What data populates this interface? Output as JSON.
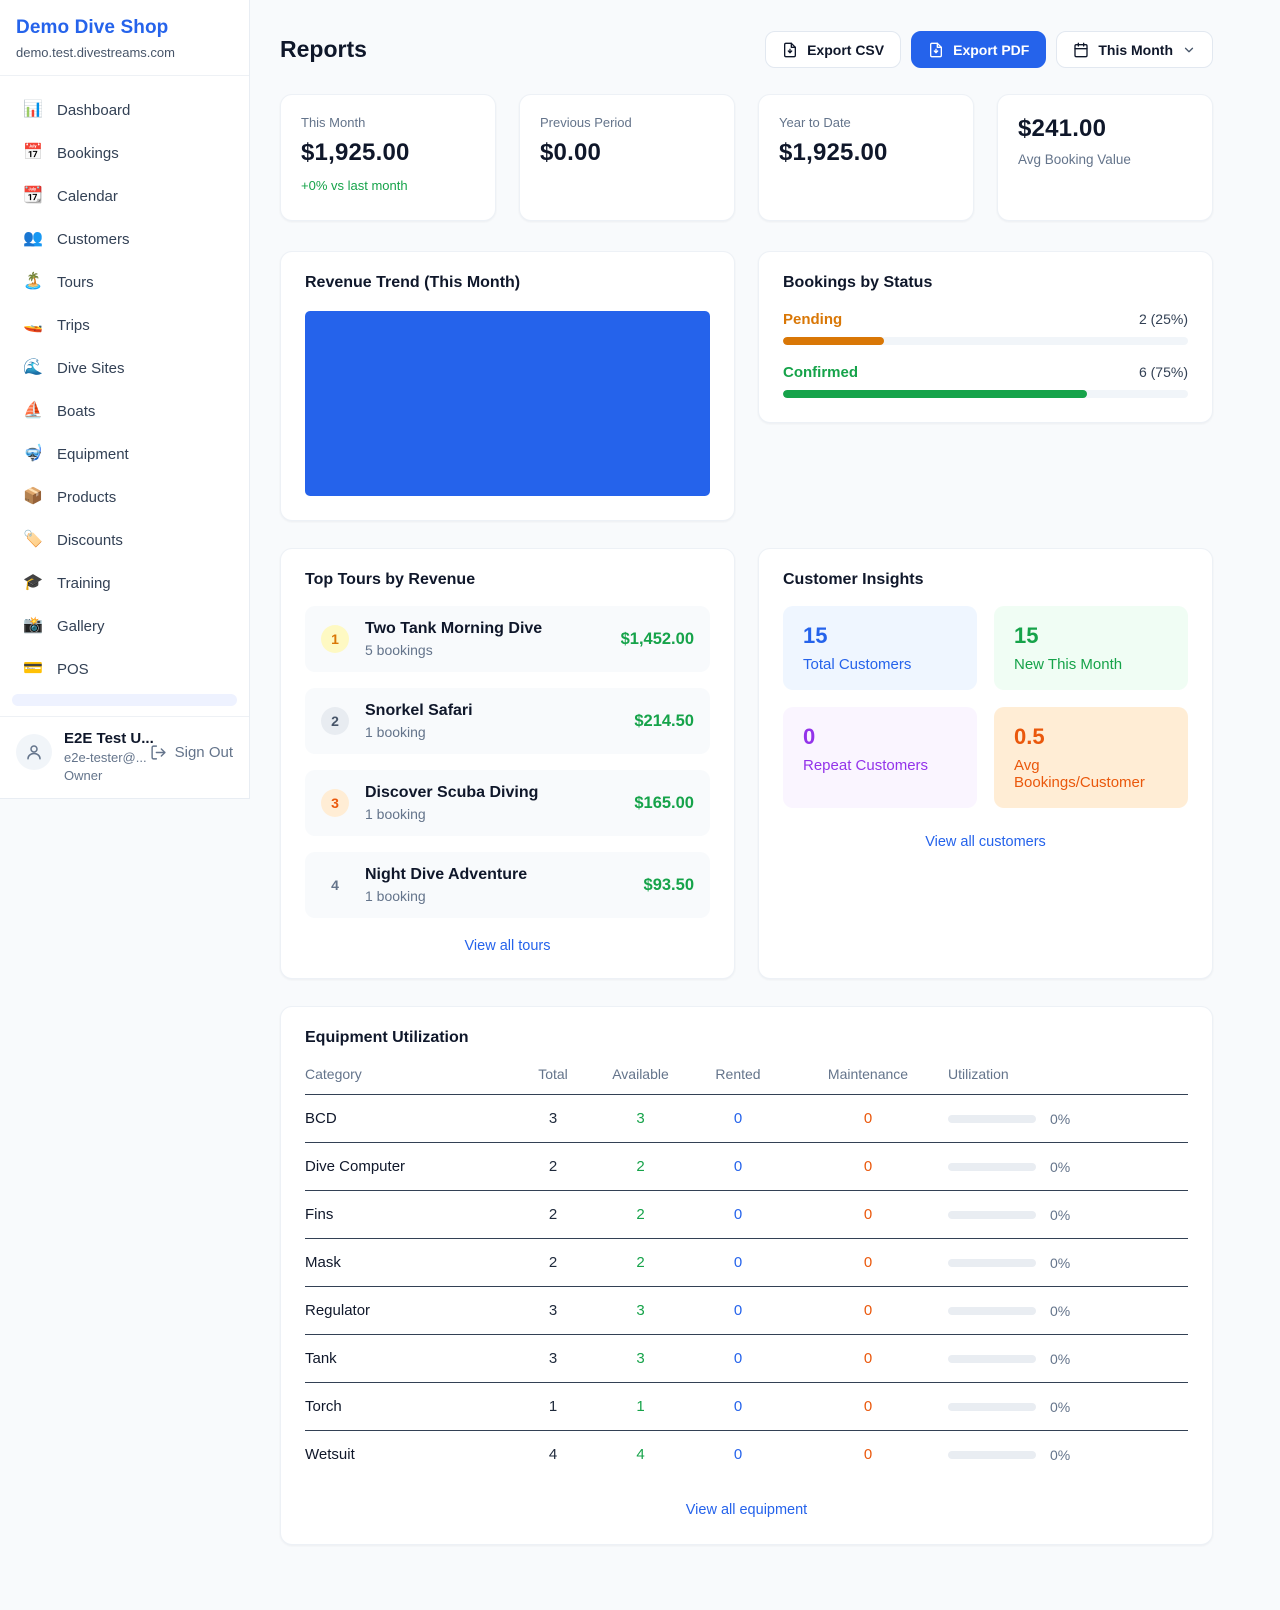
{
  "colors": {
    "brand": "#2563eb",
    "link": "#2563eb",
    "success": "#16a34a",
    "pending": "#d97706",
    "rented": "#2563eb",
    "maintenance": "#ea580c",
    "page_bg": "#f8fafc"
  },
  "sidebar": {
    "brand": {
      "name": "Demo Dive Shop",
      "domain": "demo.test.divestreams.com"
    },
    "items": [
      {
        "icon": "📊",
        "label": "Dashboard"
      },
      {
        "icon": "📅",
        "label": "Bookings"
      },
      {
        "icon": "📆",
        "label": "Calendar"
      },
      {
        "icon": "👥",
        "label": "Customers"
      },
      {
        "icon": "🏝️",
        "label": "Tours"
      },
      {
        "icon": "🚤",
        "label": "Trips"
      },
      {
        "icon": "🌊",
        "label": "Dive Sites"
      },
      {
        "icon": "⛵",
        "label": "Boats"
      },
      {
        "icon": "🤿",
        "label": "Equipment"
      },
      {
        "icon": "📦",
        "label": "Products"
      },
      {
        "icon": "🏷️",
        "label": "Discounts"
      },
      {
        "icon": "🎓",
        "label": "Training"
      },
      {
        "icon": "📸",
        "label": "Gallery"
      },
      {
        "icon": "💳",
        "label": "POS"
      }
    ],
    "user": {
      "name": "E2E Test U...",
      "email": "e2e-tester@...",
      "role": "Owner",
      "sign_out_label": "Sign Out"
    }
  },
  "header": {
    "title": "Reports",
    "export_csv_label": "Export CSV",
    "export_pdf_label": "Export PDF",
    "period_label": "This Month"
  },
  "stats": [
    {
      "label": "This Month",
      "value": "$1,925.00",
      "delta": "+0% vs last month"
    },
    {
      "label": "Previous Period",
      "value": "$0.00"
    },
    {
      "label": "Year to Date",
      "value": "$1,925.00"
    },
    {
      "label": "Avg Booking Value",
      "value": "$241.00"
    }
  ],
  "revenue_trend": {
    "title": "Revenue Trend (This Month)",
    "bar_color": "#2563eb"
  },
  "bookings_by_status": {
    "title": "Bookings by Status",
    "rows": [
      {
        "label": "Pending",
        "value": "2 (25%)",
        "percent": 25,
        "color": "#d97706"
      },
      {
        "label": "Confirmed",
        "value": "6 (75%)",
        "percent": 75,
        "color": "#16a34a"
      }
    ]
  },
  "top_tours": {
    "title": "Top Tours by Revenue",
    "rows": [
      {
        "rank": "1",
        "name": "Two Tank Morning Dive",
        "bookings": "5 bookings",
        "revenue": "$1,452.00",
        "badge_bg": "#fef9c3",
        "badge_color": "#d97706"
      },
      {
        "rank": "2",
        "name": "Snorkel Safari",
        "bookings": "1 booking",
        "revenue": "$214.50",
        "badge_bg": "#e8ecf1",
        "badge_color": "#475569"
      },
      {
        "rank": "3",
        "name": "Discover Scuba Diving",
        "bookings": "1 booking",
        "revenue": "$165.00",
        "badge_bg": "#ffedd5",
        "badge_color": "#ea580c"
      },
      {
        "rank": "4",
        "name": "Night Dive Adventure",
        "bookings": "1 booking",
        "revenue": "$93.50",
        "badge_bg": "transparent",
        "badge_color": "#64748b"
      }
    ],
    "view_all_label": "View all tours"
  },
  "customer_insights": {
    "title": "Customer Insights",
    "tiles": [
      {
        "value": "15",
        "label": "Total Customers",
        "color": "#2563eb",
        "bg": "#eff6ff"
      },
      {
        "value": "15",
        "label": "New This Month",
        "color": "#16a34a",
        "bg": "#f0fdf4"
      },
      {
        "value": "0",
        "label": "Repeat Customers",
        "color": "#9333ea",
        "bg": "#faf5ff"
      },
      {
        "value": "0.5",
        "label": "Avg Bookings/Customer",
        "color": "#ea580c",
        "bg": "#ffedd5"
      }
    ],
    "view_all_label": "View all customers"
  },
  "equipment": {
    "title": "Equipment Utilization",
    "columns": [
      "Category",
      "Total",
      "Available",
      "Rented",
      "Maintenance",
      "Utilization"
    ],
    "rows": [
      {
        "category": "BCD",
        "total": "3",
        "available": "3",
        "rented": "0",
        "maintenance": "0",
        "utilization_percent": 0,
        "utilization_label": "0%"
      },
      {
        "category": "Dive Computer",
        "total": "2",
        "available": "2",
        "rented": "0",
        "maintenance": "0",
        "utilization_percent": 0,
        "utilization_label": "0%"
      },
      {
        "category": "Fins",
        "total": "2",
        "available": "2",
        "rented": "0",
        "maintenance": "0",
        "utilization_percent": 0,
        "utilization_label": "0%"
      },
      {
        "category": "Mask",
        "total": "2",
        "available": "2",
        "rented": "0",
        "maintenance": "0",
        "utilization_percent": 0,
        "utilization_label": "0%"
      },
      {
        "category": "Regulator",
        "total": "3",
        "available": "3",
        "rented": "0",
        "maintenance": "0",
        "utilization_percent": 0,
        "utilization_label": "0%"
      },
      {
        "category": "Tank",
        "total": "3",
        "available": "3",
        "rented": "0",
        "maintenance": "0",
        "utilization_percent": 0,
        "utilization_label": "0%"
      },
      {
        "category": "Torch",
        "total": "1",
        "available": "1",
        "rented": "0",
        "maintenance": "0",
        "utilization_percent": 0,
        "utilization_label": "0%"
      },
      {
        "category": "Wetsuit",
        "total": "4",
        "available": "4",
        "rented": "0",
        "maintenance": "0",
        "utilization_percent": 0,
        "utilization_label": "0%"
      }
    ],
    "view_all_label": "View all equipment"
  }
}
